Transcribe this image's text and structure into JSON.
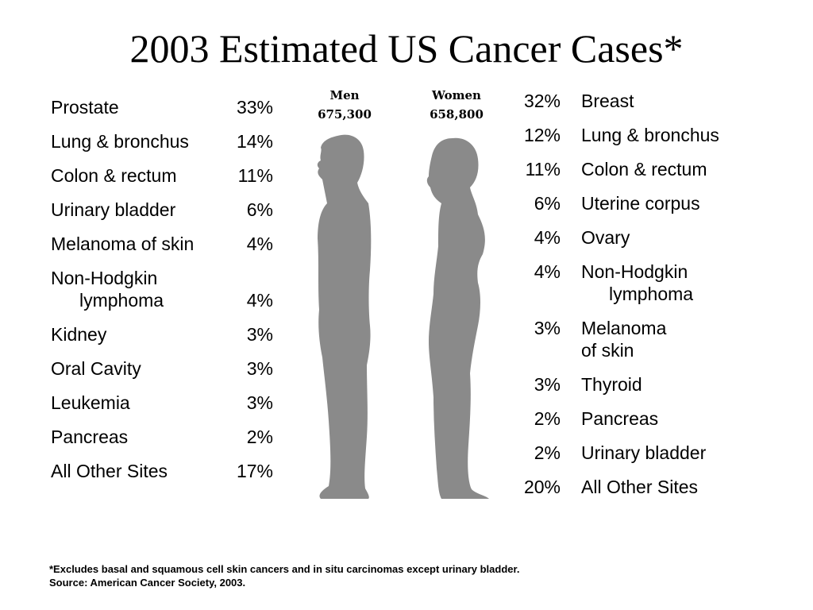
{
  "title": "2003 Estimated US Cancer Cases*",
  "men": {
    "label": "Men",
    "count": "675,300",
    "rows": [
      {
        "site": "Prostate",
        "pct": "33%"
      },
      {
        "site": "Lung & bronchus",
        "pct": "14%"
      },
      {
        "site": "Colon & rectum",
        "pct": "11%"
      },
      {
        "site": "Urinary bladder",
        "pct": "6%"
      },
      {
        "site": "Melanoma of skin",
        "pct": "4%"
      },
      {
        "site": "Non-Hodgkin",
        "site2": "lymphoma",
        "pct": "4%"
      },
      {
        "site": "Kidney",
        "pct": "3%"
      },
      {
        "site": "Oral Cavity",
        "pct": "3%"
      },
      {
        "site": "Leukemia",
        "pct": "3%"
      },
      {
        "site": "Pancreas",
        "pct": "2%"
      },
      {
        "site": "All Other Sites",
        "pct": "17%"
      }
    ]
  },
  "women": {
    "label": "Women",
    "count": "658,800",
    "rows": [
      {
        "pct": "32%",
        "site": "Breast"
      },
      {
        "pct": "12%",
        "site": "Lung & bronchus"
      },
      {
        "pct": "11%",
        "site": "Colon & rectum"
      },
      {
        "pct": "6%",
        "site": "Uterine corpus"
      },
      {
        "pct": "4%",
        "site": "Ovary"
      },
      {
        "pct": "4%",
        "site": "Non-Hodgkin",
        "site2": "lymphoma"
      },
      {
        "pct": "3%",
        "site": "Melanoma",
        "site2": "of skin"
      },
      {
        "pct": "3%",
        "site": "Thyroid"
      },
      {
        "pct": "2%",
        "site": "Pancreas"
      },
      {
        "pct": "2%",
        "site": "Urinary bladder"
      },
      {
        "pct": "20%",
        "site": "All Other Sites"
      }
    ]
  },
  "footnote": {
    "line1": "*Excludes basal and squamous cell skin cancers and in situ carcinomas except urinary bladder.",
    "line2": "Source: American Cancer Society, 2003."
  },
  "colors": {
    "silhouette": "#8a8a8a"
  }
}
